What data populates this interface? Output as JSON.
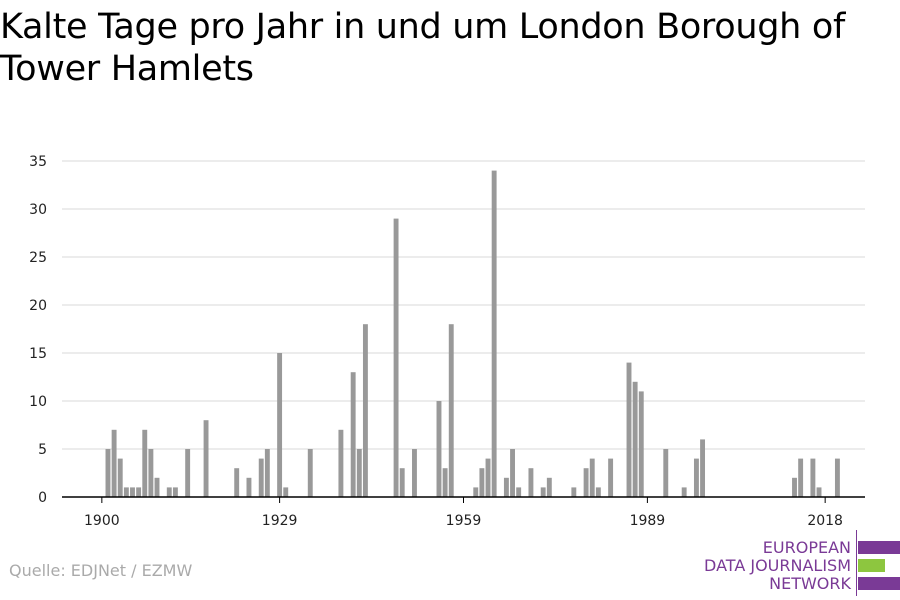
{
  "title": "Kalte Tage pro Jahr in und um London Borough of Tower Hamlets",
  "source": "Quelle: EDJNet / EZMW",
  "logo": {
    "lines": [
      "EUROPEAN",
      "DATA JOURNALISM",
      "NETWORK"
    ],
    "colors": {
      "purple": "#7a3a96",
      "green": "#8dc63f"
    }
  },
  "chart_data": {
    "type": "bar",
    "title": "Kalte Tage pro Jahr in und um London Borough of Tower Hamlets",
    "xlabel": "",
    "ylabel": "",
    "ylim": [
      0,
      35
    ],
    "yticks": [
      0,
      5,
      10,
      15,
      20,
      25,
      30,
      35
    ],
    "xticks": [
      1900,
      1929,
      1959,
      1989,
      2018
    ],
    "xlim": [
      1893.5,
      2024.5
    ],
    "grid": true,
    "bar_color": "#999999",
    "x": [
      1901,
      1902,
      1903,
      1904,
      1905,
      1906,
      1907,
      1908,
      1909,
      1911,
      1912,
      1914,
      1917,
      1922,
      1924,
      1926,
      1927,
      1929,
      1930,
      1934,
      1939,
      1941,
      1942,
      1943,
      1948,
      1949,
      1951,
      1955,
      1956,
      1957,
      1961,
      1962,
      1963,
      1964,
      1966,
      1967,
      1968,
      1970,
      1972,
      1973,
      1977,
      1979,
      1980,
      1981,
      1983,
      1986,
      1987,
      1988,
      1992,
      1995,
      1997,
      1998,
      2013,
      2014,
      2016,
      2017,
      2020
    ],
    "values": [
      5,
      7,
      4,
      1,
      1,
      1,
      7,
      5,
      2,
      1,
      1,
      5,
      8,
      3,
      2,
      4,
      5,
      15,
      1,
      5,
      7,
      13,
      5,
      18,
      29,
      3,
      5,
      10,
      3,
      18,
      1,
      3,
      4,
      34,
      2,
      5,
      1,
      3,
      1,
      2,
      1,
      3,
      4,
      1,
      4,
      14,
      12,
      11,
      5,
      1,
      4,
      6,
      2,
      4,
      4,
      1,
      4
    ]
  }
}
